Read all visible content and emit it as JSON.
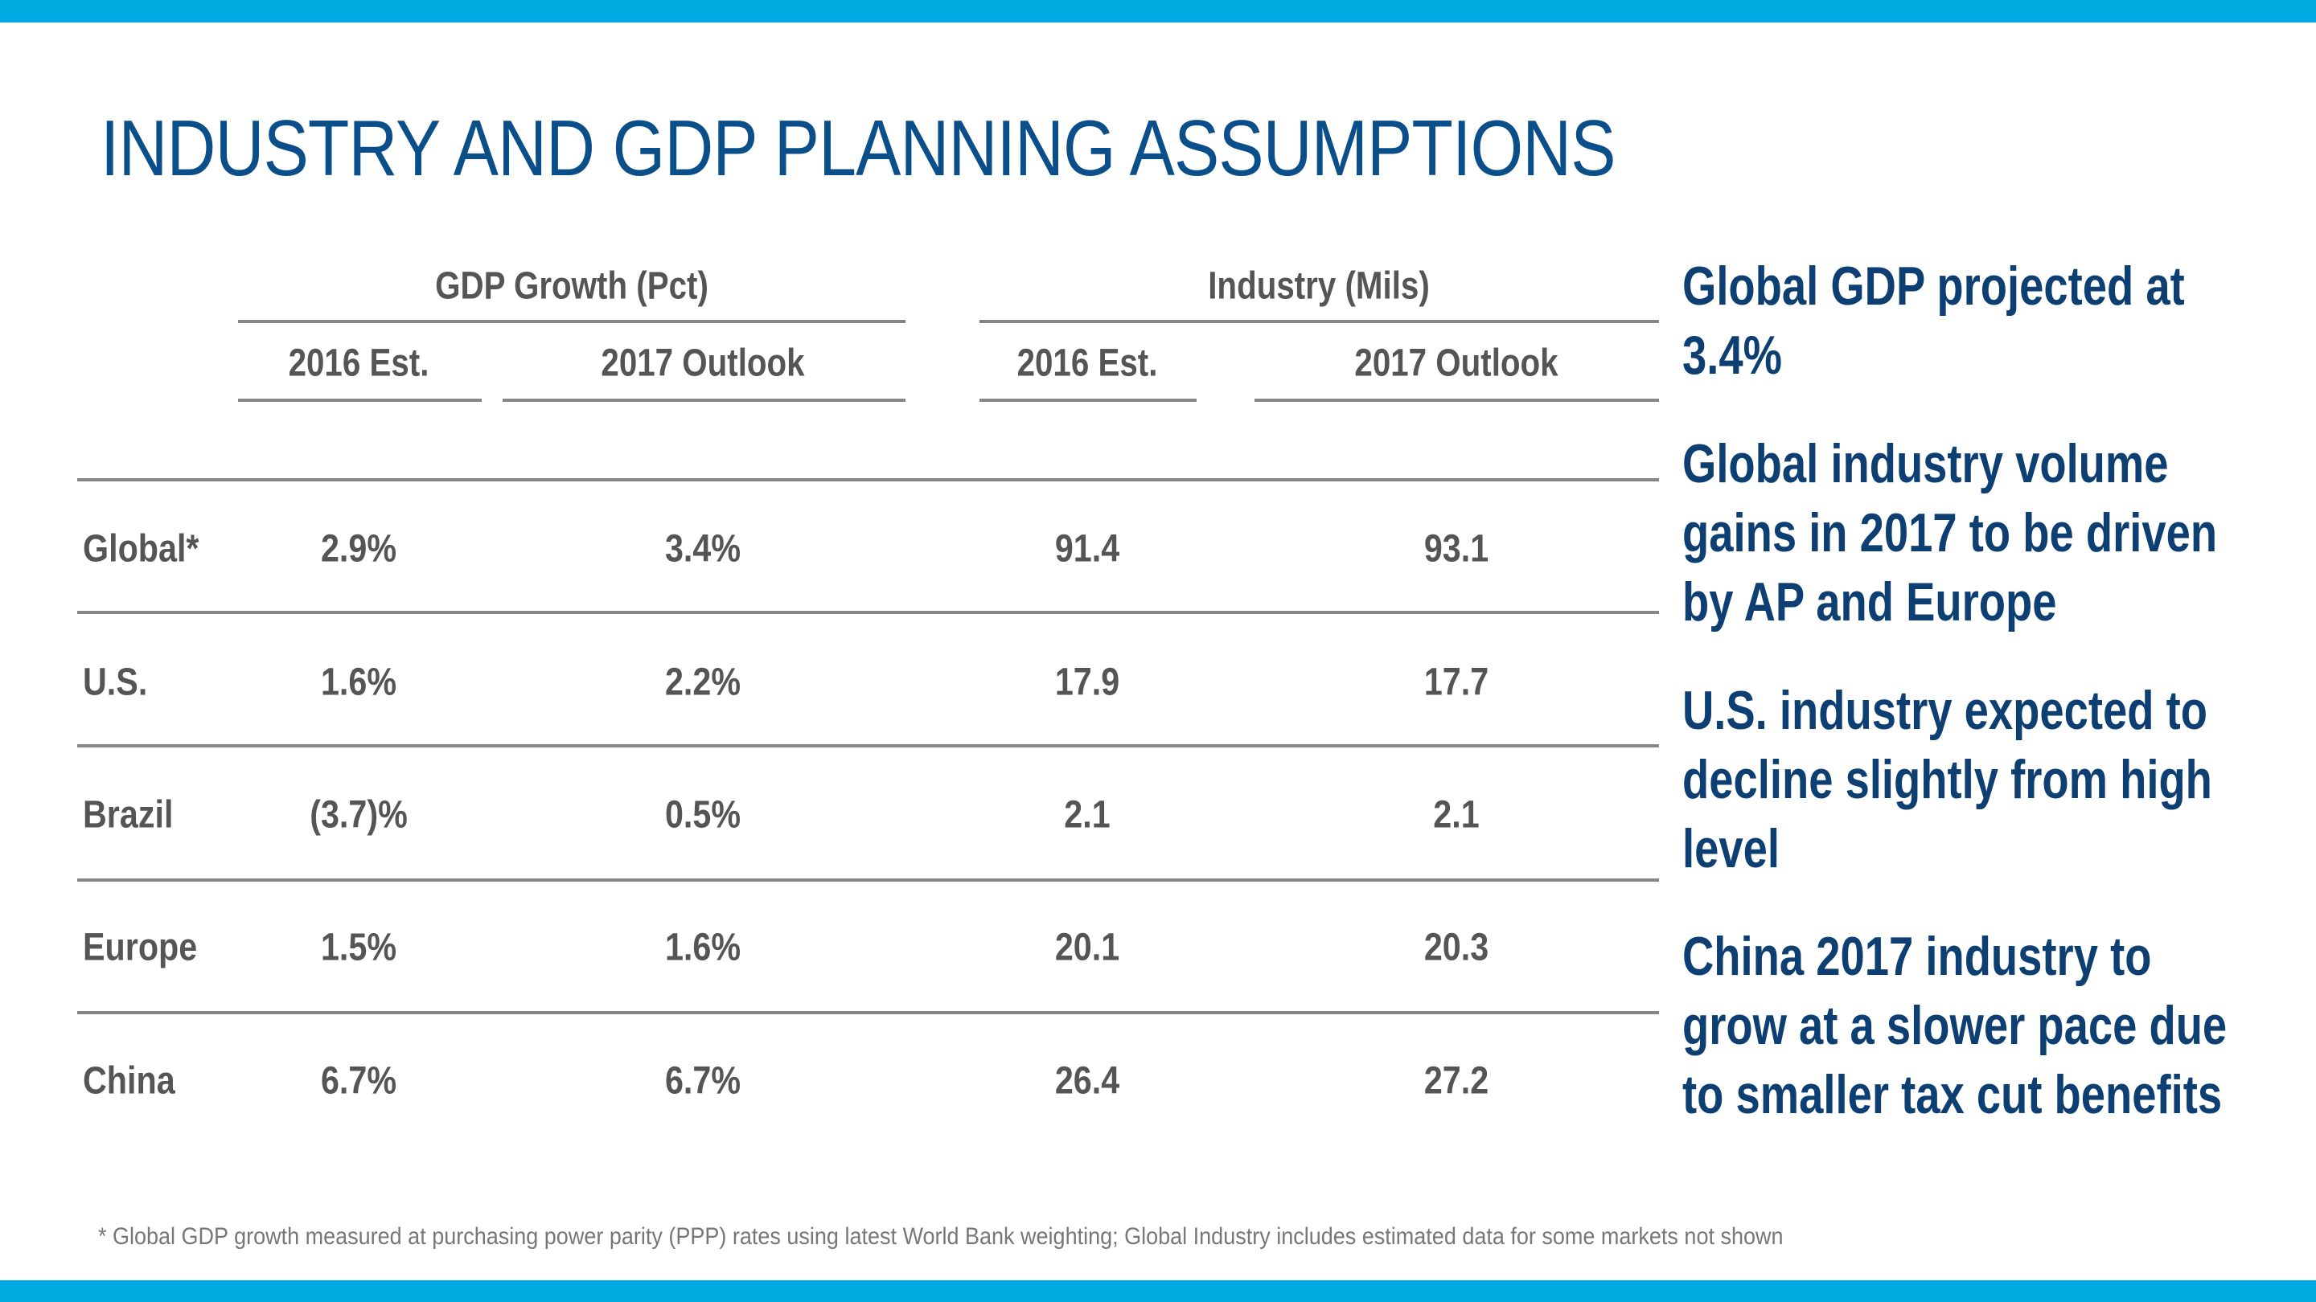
{
  "colors": {
    "accent_bar": "#00a9e0",
    "title": "#0b4f8a",
    "notes": "#0d3f73",
    "table_text": "#555555"
  },
  "title": "INDUSTRY AND GDP PLANNING ASSUMPTIONS",
  "table": {
    "groups": [
      "GDP Growth (Pct)",
      "Industry (Mils)"
    ],
    "columns": [
      "2016 Est.",
      "2017 Outlook",
      "2016 Est.",
      "2017 Outlook"
    ],
    "rows": [
      {
        "label": "Global*",
        "values": [
          "2.9%",
          "3.4%",
          "91.4",
          "93.1"
        ]
      },
      {
        "label": "U.S.",
        "values": [
          "1.6%",
          "2.2%",
          "17.9",
          "17.7"
        ]
      },
      {
        "label": "Brazil",
        "values": [
          "(3.7)%",
          "0.5%",
          "2.1",
          "2.1"
        ]
      },
      {
        "label": "Europe",
        "values": [
          "1.5%",
          "1.6%",
          "20.1",
          "20.3"
        ]
      },
      {
        "label": "China",
        "values": [
          "6.7%",
          "6.7%",
          "26.4",
          "27.2"
        ]
      }
    ]
  },
  "notes": [
    [
      "Global GDP projected at",
      "3.4%"
    ],
    [
      "Global industry volume",
      "gains in 2017 to be driven",
      "by AP and Europe"
    ],
    [
      "U.S. industry expected to",
      "decline slightly from high",
      "level"
    ],
    [
      "China 2017 industry to",
      "grow at a slower pace due",
      "to smaller tax cut benefits"
    ]
  ],
  "footnote": "*   Global GDP growth measured at purchasing power parity (PPP) rates using latest World Bank weighting; Global Industry includes estimated data for some markets not shown"
}
